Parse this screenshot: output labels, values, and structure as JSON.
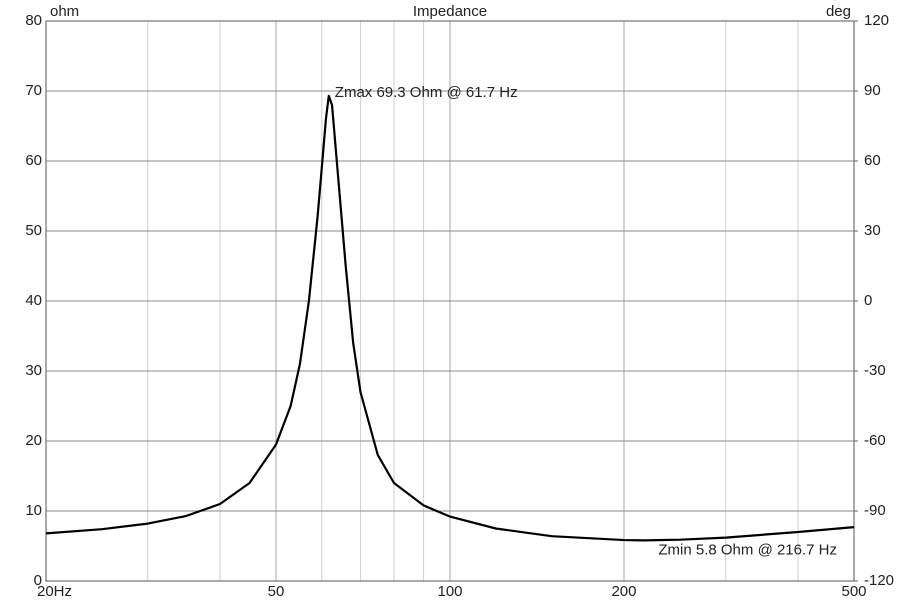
{
  "chart_data": {
    "type": "line",
    "title": "Impedance",
    "ylabel": "ohm",
    "y2label": "deg",
    "xscale": "log",
    "xlim": [
      20,
      500
    ],
    "xticks": [
      {
        "value": 20,
        "label": "20Hz"
      },
      50,
      100,
      200,
      500
    ],
    "xgrid": [
      30,
      40,
      60,
      70,
      80,
      90,
      300,
      400
    ],
    "ylim": [
      0,
      80
    ],
    "yticks": [
      0,
      10,
      20,
      30,
      40,
      50,
      60,
      70,
      80
    ],
    "y2lim": [
      -120,
      120
    ],
    "y2ticks": [
      -120,
      -90,
      -60,
      -30,
      0,
      30,
      60,
      90,
      120
    ],
    "grid": true,
    "x": [
      20,
      25,
      30,
      35,
      40,
      45,
      50,
      53,
      55,
      57,
      59,
      60,
      61,
      61.7,
      62.5,
      64,
      66,
      68,
      70,
      75,
      80,
      90,
      100,
      120,
      150,
      200,
      216.7,
      250,
      300,
      400,
      500
    ],
    "series": [
      {
        "name": "Impedance",
        "color": "#000000",
        "values": [
          6.8,
          7.4,
          8.2,
          9.3,
          11,
          14,
          19.5,
          25,
          31,
          40,
          52,
          59,
          66,
          69.3,
          68,
          58,
          45,
          34,
          27,
          18,
          14,
          10.8,
          9.2,
          7.5,
          6.4,
          5.85,
          5.8,
          5.9,
          6.2,
          7,
          7.7
        ]
      }
    ],
    "annotations": [
      {
        "text": "Zmax 69.3 Ohm @ 61.7 Hz",
        "x": 61.7,
        "y": 69.3
      },
      {
        "text": "Zmin 5.8 Ohm @ 216.7 Hz",
        "x": 216.7,
        "y": 5.8
      }
    ]
  }
}
